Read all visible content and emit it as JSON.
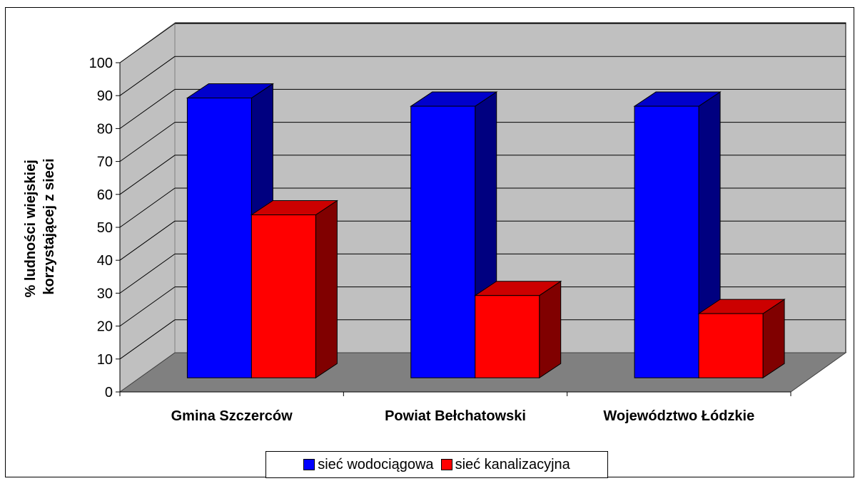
{
  "chart_data": {
    "type": "bar",
    "view": "3d-clustered",
    "title": "",
    "xlabel": "",
    "ylabel_lines": [
      "% ludności wiejskiej",
      "korzystającej z sieci"
    ],
    "categories": [
      "Gmina Szczerców",
      "Powiat Bełchatowski",
      "Województwo Łódzkie"
    ],
    "yticks": [
      "0",
      "10",
      "20",
      "30",
      "40",
      "50",
      "60",
      "70",
      "80",
      "90",
      "100"
    ],
    "ylim": [
      0,
      100
    ],
    "grid": true,
    "legend_position": "bottom",
    "series": [
      {
        "name": "sieć wodociągowa",
        "values": [
          85,
          82.5,
          82.5
        ],
        "color": "#0000ff"
      },
      {
        "name": "sieć kanalizacyjna",
        "values": [
          49.5,
          25,
          19.5
        ],
        "color": "#ff0000"
      }
    ],
    "colors": {
      "wall": "#c0c0c0",
      "floor": "#808080",
      "blue_top": "#0000cc",
      "blue_side": "#000080",
      "red_top": "#cc0000",
      "red_side": "#800000"
    }
  }
}
